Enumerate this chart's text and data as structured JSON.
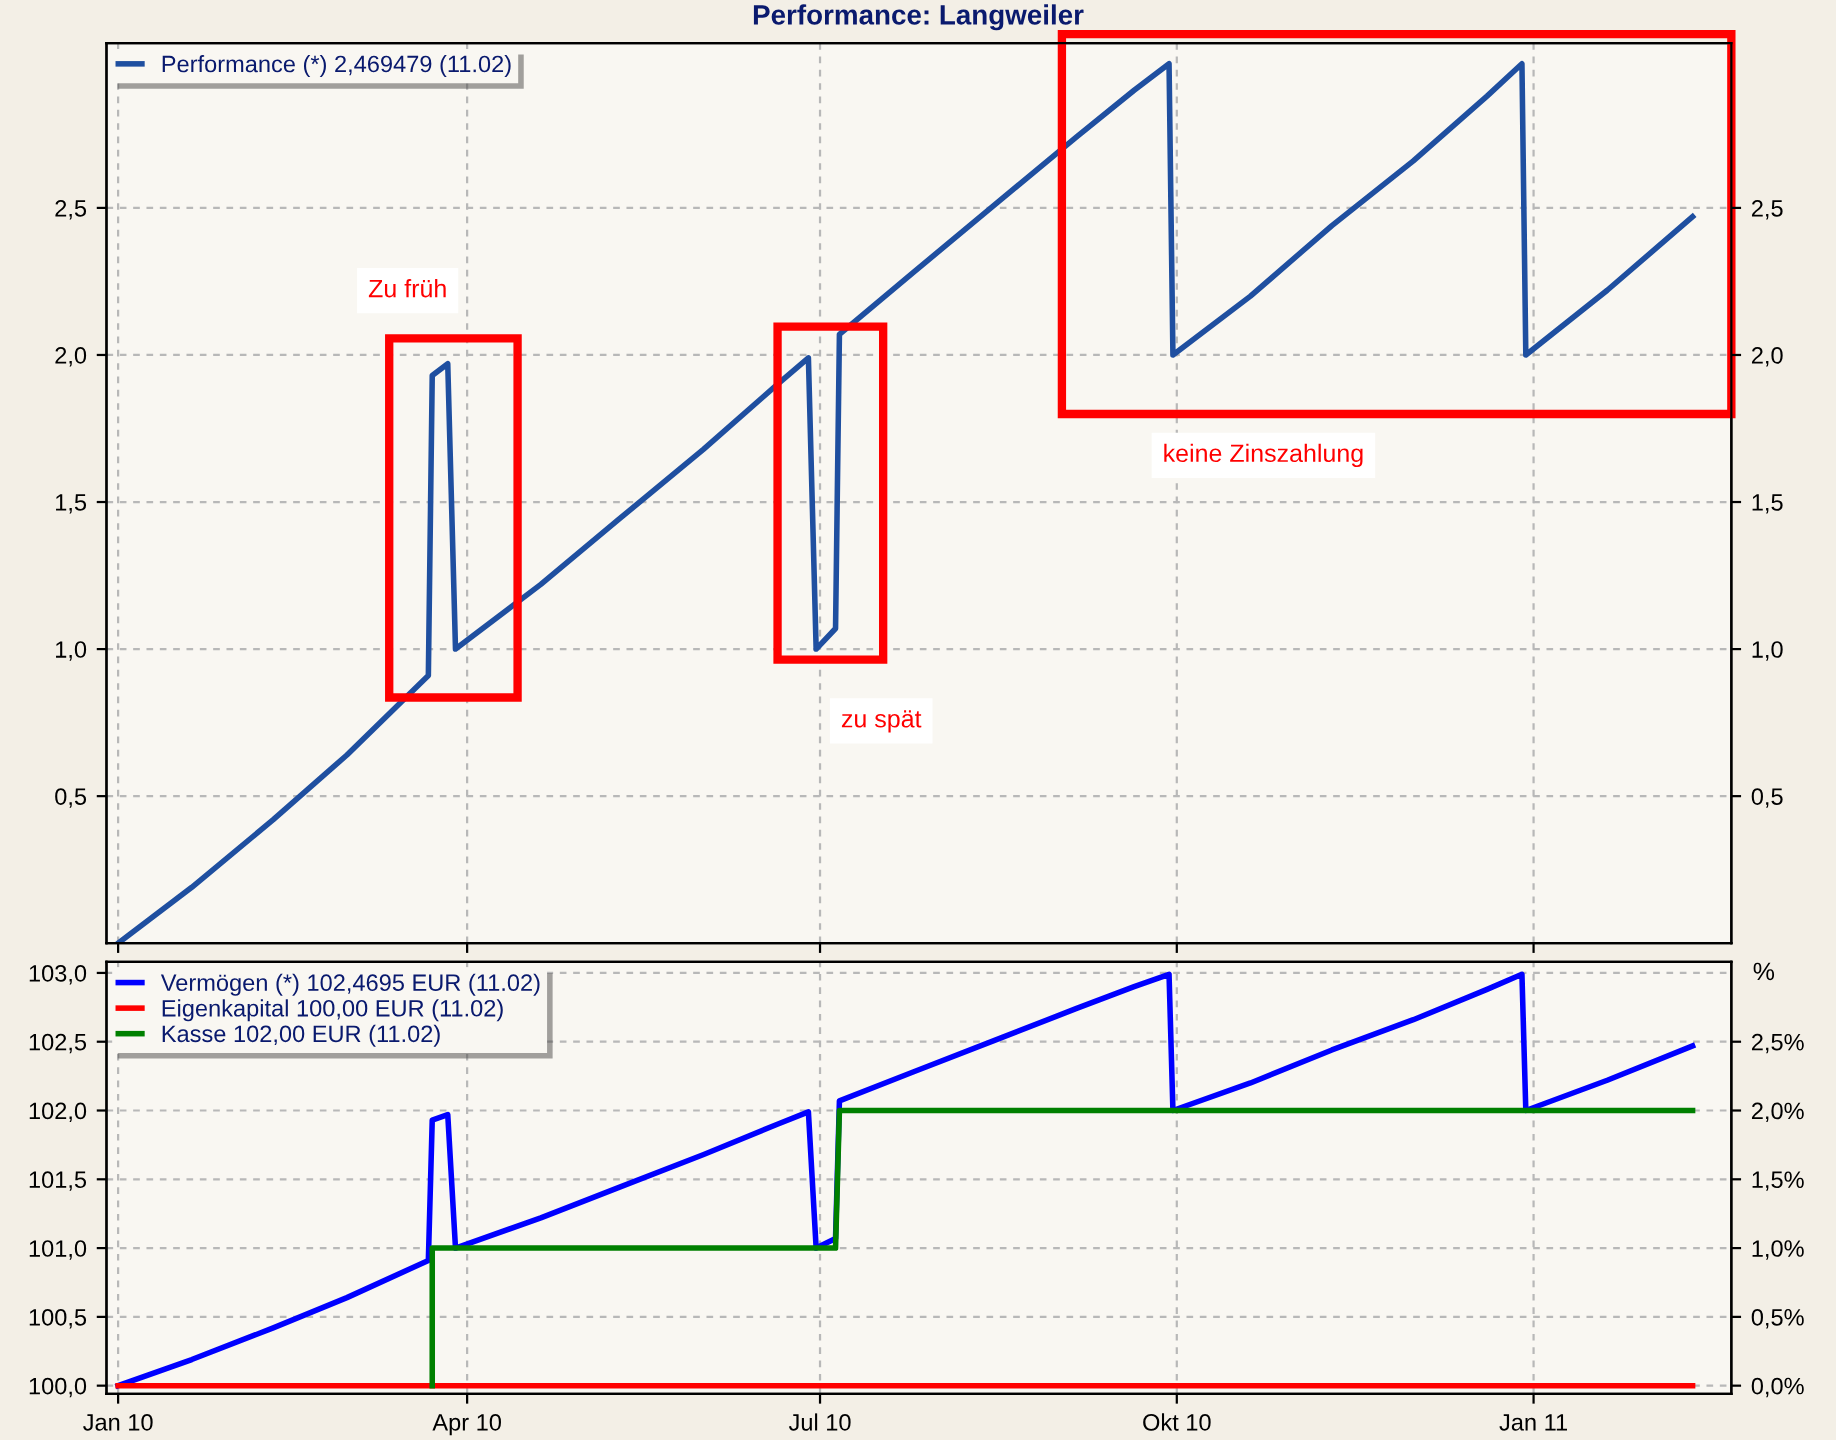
{
  "chart_data": [
    {
      "type": "line",
      "title": "Performance: Langweiler",
      "series": [
        {
          "name": "Performance (*) 2,469479 (11.02)",
          "color": "#1f4fa0",
          "x": [
            "2010-01-01",
            "2010-01-20",
            "2010-02-10",
            "2010-03-01",
            "2010-03-22",
            "2010-03-23",
            "2010-03-27",
            "2010-03-29",
            "2010-04-20",
            "2010-05-10",
            "2010-06-01",
            "2010-06-20",
            "2010-06-28",
            "2010-06-30",
            "2010-07-05",
            "2010-07-06",
            "2010-07-25",
            "2010-08-15",
            "2010-09-05",
            "2010-09-20",
            "2010-09-29",
            "2010-09-30",
            "2010-10-20",
            "2010-11-10",
            "2010-12-01",
            "2010-12-20",
            "2010-12-29",
            "2010-12-30",
            "2011-01-20",
            "2011-02-11"
          ],
          "values": [
            0.0,
            0.19,
            0.42,
            0.64,
            0.91,
            1.93,
            1.97,
            1.0,
            1.22,
            1.44,
            1.68,
            1.9,
            1.99,
            1.0,
            1.07,
            2.07,
            2.28,
            2.51,
            2.74,
            2.9,
            2.99,
            2.0,
            2.2,
            2.44,
            2.66,
            2.88,
            2.99,
            2.0,
            2.22,
            2.47
          ]
        }
      ],
      "xlim": [
        "2009-12-29",
        "2011-02-21"
      ],
      "xticks": [
        {
          "value": "2010-01-01",
          "label": null
        },
        {
          "value": "2010-04-01",
          "label": null
        },
        {
          "value": "2010-07-01",
          "label": null
        },
        {
          "value": "2010-10-01",
          "label": null
        },
        {
          "value": "2011-01-01",
          "label": null
        }
      ],
      "ylim": [
        0,
        3.06
      ],
      "yticks": [
        {
          "value": 0.5,
          "label": "0,5"
        },
        {
          "value": 1.0,
          "label": "1,0"
        },
        {
          "value": 1.5,
          "label": "1,5"
        },
        {
          "value": 2.0,
          "label": "2,0"
        },
        {
          "value": 2.5,
          "label": "2,5"
        }
      ],
      "y2lim": [
        0,
        3.06
      ],
      "y2ticks": [
        {
          "value": 0.5,
          "label": "0,5"
        },
        {
          "value": 1.0,
          "label": "1,0"
        },
        {
          "value": 1.5,
          "label": "1,5"
        },
        {
          "value": 2.0,
          "label": "2,0"
        },
        {
          "value": 2.5,
          "label": "2,5"
        }
      ],
      "tick_labels": "y",
      "annotations": [
        "Zu früh",
        "zu spät",
        "keine Zinszahlung"
      ],
      "grid": true,
      "legend": "top left",
      "line_style": "solid",
      "marker": "none"
    },
    {
      "type": "line",
      "y2label": "%",
      "series": [
        {
          "name": "Vermögen (*) 102,4695 EUR (11.02)",
          "color": "#0000ff",
          "x": [
            "2010-01-01",
            "2010-01-20",
            "2010-02-10",
            "2010-03-01",
            "2010-03-22",
            "2010-03-23",
            "2010-03-27",
            "2010-03-29",
            "2010-04-20",
            "2010-05-10",
            "2010-06-01",
            "2010-06-20",
            "2010-06-28",
            "2010-06-30",
            "2010-07-05",
            "2010-07-06",
            "2010-07-25",
            "2010-08-15",
            "2010-09-05",
            "2010-09-20",
            "2010-09-29",
            "2010-09-30",
            "2010-10-20",
            "2010-11-10",
            "2010-12-01",
            "2010-12-20",
            "2010-12-29",
            "2010-12-30",
            "2011-01-20",
            "2011-02-11"
          ],
          "values": [
            100.0,
            100.19,
            100.42,
            100.64,
            100.91,
            101.93,
            101.97,
            101.0,
            101.22,
            101.44,
            101.68,
            101.9,
            101.99,
            101.0,
            101.07,
            102.07,
            102.28,
            102.51,
            102.74,
            102.9,
            102.99,
            102.0,
            102.2,
            102.44,
            102.66,
            102.88,
            102.99,
            102.0,
            102.22,
            102.47
          ]
        },
        {
          "name": "Eigenkapital 100,00 EUR (11.02)",
          "color": "#ff0000",
          "x": [
            "2010-01-01",
            "2011-02-11"
          ],
          "values": [
            100.0,
            100.0
          ]
        },
        {
          "name": "Kasse 102,00 EUR (11.02)",
          "color": "#008000",
          "x": [
            "2010-03-23",
            "2010-03-23",
            "2010-07-05",
            "2010-07-06",
            "2011-02-11"
          ],
          "values": [
            100.0,
            101.0,
            101.0,
            102.0,
            102.0
          ]
        }
      ],
      "xlim": [
        "2009-12-29",
        "2011-02-21"
      ],
      "xticks": [
        {
          "value": "2010-01-01",
          "label": "Jan 10"
        },
        {
          "value": "2010-04-01",
          "label": "Apr 10"
        },
        {
          "value": "2010-07-01",
          "label": "Jul 10"
        },
        {
          "value": "2010-10-01",
          "label": "Okt 10"
        },
        {
          "value": "2011-01-01",
          "label": "Jan 11"
        }
      ],
      "ylim": [
        99.94,
        103.08
      ],
      "yticks": [
        {
          "value": 100.0,
          "label": "100,0"
        },
        {
          "value": 100.5,
          "label": "100,5"
        },
        {
          "value": 101.0,
          "label": "101,0"
        },
        {
          "value": 101.5,
          "label": "101,5"
        },
        {
          "value": 102.0,
          "label": "102,0"
        },
        {
          "value": 102.5,
          "label": "102,5"
        },
        {
          "value": 103.0,
          "label": "103,0"
        }
      ],
      "y2lim": [
        -0.06,
        3.08
      ],
      "y2ticks": [
        {
          "value": 0.0,
          "label": "0,0%"
        },
        {
          "value": 0.5,
          "label": "0,5%"
        },
        {
          "value": 1.0,
          "label": "1,0%"
        },
        {
          "value": 1.5,
          "label": "1,5%"
        },
        {
          "value": 2.0,
          "label": "2,0%"
        },
        {
          "value": 2.5,
          "label": "2,5%"
        }
      ],
      "grid": true,
      "legend": "top left",
      "line_style": "solid",
      "marker": "none"
    }
  ]
}
